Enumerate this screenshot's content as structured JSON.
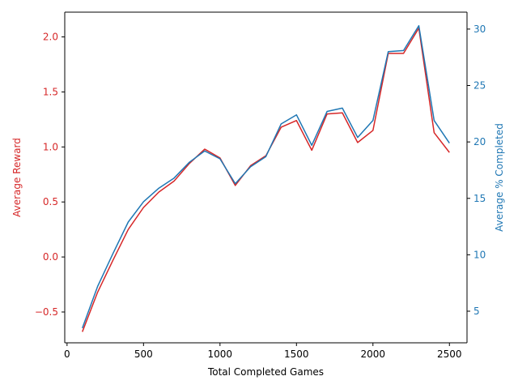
{
  "chart_data": {
    "type": "line",
    "title": "",
    "xlabel": "Total Completed Games",
    "ylabel_left": "Average Reward",
    "ylabel_right": "Average % Completed",
    "colors": {
      "left": "#d62728",
      "right": "#1f77b4",
      "axis": "#000000"
    },
    "grid": false,
    "xlim": [
      -15,
      2615
    ],
    "ylim_left": [
      -0.78,
      2.225
    ],
    "ylim_right": [
      2.2,
      31.5
    ],
    "x_ticks": [
      0,
      500,
      1000,
      1500,
      2000,
      2500
    ],
    "x_tick_labels": [
      "0",
      "500",
      "1000",
      "1500",
      "2000",
      "2500"
    ],
    "y_left_ticks": [
      -0.5,
      0.0,
      0.5,
      1.0,
      1.5,
      2.0
    ],
    "y_left_tick_labels": [
      "−0.5",
      "0.0",
      "0.5",
      "1.0",
      "1.5",
      "2.0"
    ],
    "y_right_ticks": [
      5,
      10,
      15,
      20,
      25,
      30
    ],
    "y_right_tick_labels": [
      "5",
      "10",
      "15",
      "20",
      "25",
      "30"
    ],
    "x": [
      100,
      200,
      300,
      400,
      500,
      600,
      700,
      800,
      900,
      1000,
      1100,
      1200,
      1300,
      1400,
      1500,
      1600,
      1700,
      1800,
      1900,
      2000,
      2100,
      2200,
      2300,
      2400,
      2500
    ],
    "series": [
      {
        "axis": "left",
        "values": [
          -0.68,
          -0.32,
          -0.03,
          0.25,
          0.45,
          0.59,
          0.69,
          0.85,
          0.98,
          0.9,
          0.65,
          0.83,
          0.92,
          1.18,
          1.24,
          0.97,
          1.3,
          1.31,
          1.04,
          1.15,
          1.85,
          1.85,
          2.08,
          1.13,
          0.95
        ]
      },
      {
        "axis": "right",
        "values": [
          3.5,
          7.2,
          10.1,
          12.9,
          14.7,
          15.9,
          16.8,
          18.2,
          19.2,
          18.5,
          16.3,
          17.8,
          18.7,
          21.6,
          22.4,
          19.7,
          22.7,
          23.0,
          20.4,
          21.9,
          28.0,
          28.1,
          30.3,
          21.9,
          19.9
        ]
      }
    ]
  }
}
